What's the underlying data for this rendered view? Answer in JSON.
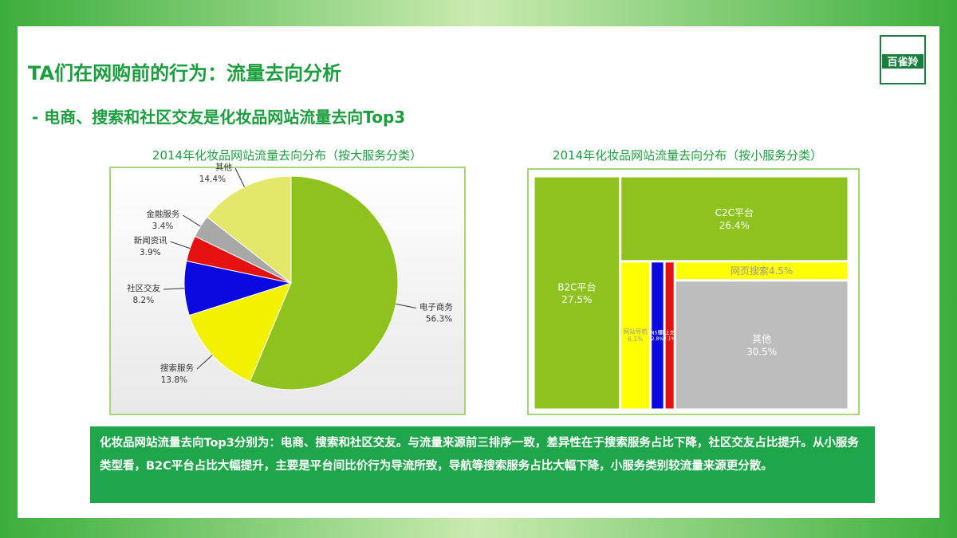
{
  "slide": {
    "title": "TA们在网购前的行为：流量去向分析",
    "subtitle": "- 电商、搜索和社区交友是化妆品网站流量去向Top3",
    "logo": "百雀羚",
    "summary": "化妆品网站流量去向Top3分别为：电商、搜索和社区交友。与流量来源前三排序一致，差异性在于搜索服务占比下降，社区交友占比提升。从小服务类型看，B2C平台占比大幅提升，主要是平台间比价行为导流所致，导航等搜索服务占比大幅下降，小服务类别较流量来源更分散。"
  },
  "chart_data": [
    {
      "type": "pie",
      "title": "2014年化妆品网站流量去向分布（按大服务分类）",
      "categories": [
        "电子商务",
        "搜索服务",
        "社区交友",
        "新闻资讯",
        "金融服务",
        "其他"
      ],
      "values": [
        56.3,
        13.8,
        8.2,
        3.9,
        3.4,
        14.4
      ],
      "value_labels": [
        "56.3%",
        "13.8%",
        "8.2%",
        "3.9%",
        "3.4%",
        "14.4%"
      ],
      "colors": [
        "#8dc21f",
        "#f2f200",
        "#0a0ae0",
        "#e51010",
        "#a8a8a8",
        "#e3e86a"
      ]
    },
    {
      "type": "treemap",
      "title": "2014年化妆品网站流量去向分布（按小服务分类）",
      "categories": [
        "B2C平台",
        "C2C平台",
        "网站导航",
        "SNS服务",
        "网上支付",
        "网页搜索",
        "其他"
      ],
      "values": [
        27.5,
        26.4,
        6.1,
        2.8,
        2.1,
        4.5,
        30.5
      ],
      "value_labels": [
        "27.5%",
        "26.4%",
        "6.1%",
        "2.8%",
        "2.1%",
        "4.5%",
        "30.5%"
      ],
      "colors": [
        "#8dc21f",
        "#8dc21f",
        "#ffff00",
        "#0a0ae0",
        "#e51010",
        "#ffff00",
        "#bdbdbd"
      ]
    }
  ]
}
